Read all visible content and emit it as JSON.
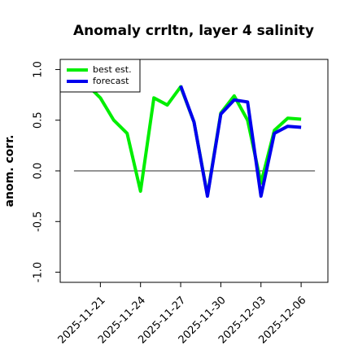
{
  "chart_data": {
    "type": "line",
    "title": "Anomaly crrltn, layer 4 salinity",
    "ylabel": "anom. corr.",
    "x": [
      "2025-11-20",
      "2025-11-21",
      "2025-11-22",
      "2025-11-23",
      "2025-11-24",
      "2025-11-25",
      "2025-11-26",
      "2025-11-27",
      "2025-11-28",
      "2025-11-29",
      "2025-11-30",
      "2025-12-01",
      "2025-12-02",
      "2025-12-03",
      "2025-12-04",
      "2025-12-05",
      "2025-12-06"
    ],
    "series": [
      {
        "name": "best est.",
        "color": "#00ee00",
        "values": [
          0.85,
          0.72,
          0.5,
          0.37,
          -0.2,
          0.72,
          0.65,
          0.83,
          0.48,
          -0.24,
          0.57,
          0.74,
          0.5,
          -0.12,
          0.4,
          0.52,
          0.51
        ]
      },
      {
        "name": "forecast",
        "color": "#0000ee",
        "values": [
          null,
          null,
          null,
          null,
          null,
          null,
          null,
          0.84,
          0.48,
          -0.25,
          0.56,
          0.7,
          0.68,
          -0.25,
          0.37,
          0.44,
          0.43
        ]
      }
    ],
    "xlim": [
      "2025-11-18",
      "2025-12-08"
    ],
    "xticks": [
      "2025-11-21",
      "2025-11-24",
      "2025-11-27",
      "2025-11-30",
      "2025-12-03",
      "2025-12-06"
    ],
    "xtick_colors": [
      "#000000",
      "#000000",
      "#228b22",
      "#000000",
      "#000000",
      "#000000"
    ],
    "ylim": [
      -1.1,
      1.1
    ],
    "yticks": [
      {
        "value": -1,
        "label": "-1.0"
      },
      -0.5,
      {
        "value": 0,
        "label": "0.0"
      },
      0.5,
      {
        "value": 1,
        "label": "1.0"
      }
    ],
    "hline": 0,
    "legend": "upper left"
  }
}
